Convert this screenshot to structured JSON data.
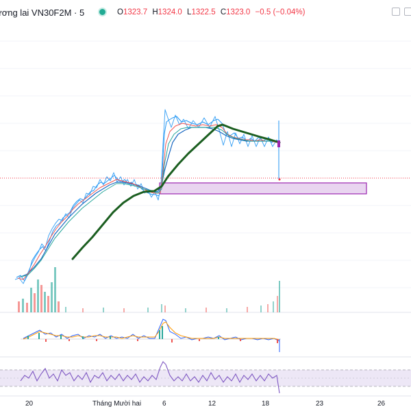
{
  "header": {
    "symbol_title": "ương lai VN30F2M · 5",
    "ohlc": [
      {
        "label": "O",
        "value": "1323.7"
      },
      {
        "label": "H",
        "value": "1324.0"
      },
      {
        "label": "L",
        "value": "1322.5"
      },
      {
        "label": "C",
        "value": "1323.0"
      }
    ],
    "change": "−0.5 (−0.04%)"
  },
  "colors": {
    "price_line": "#2962ff",
    "ma_long": "#1b5e20",
    "zone_fill": "#e9d5f0",
    "zone_border": "#9c27b0",
    "rsi_line": "#7e57c2",
    "volume_up": "#26a69a",
    "volume_down": "#ef5350",
    "last_price_line": "#f23645"
  },
  "icons": [
    "status-dot",
    "maximize-icon",
    "settings-icon"
  ],
  "x_axis": {
    "labels": [
      {
        "text": "20"
      },
      {
        "text": "Tháng Mười hai"
      },
      {
        "text": "6"
      },
      {
        "text": "12"
      },
      {
        "text": "18"
      },
      {
        "text": "23"
      },
      {
        "text": "26"
      }
    ]
  }
}
